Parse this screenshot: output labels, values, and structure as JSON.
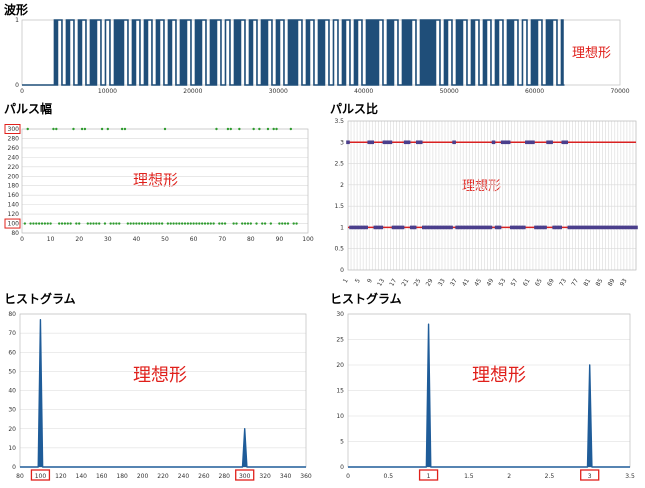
{
  "chart_data": [
    {
      "type": "line",
      "title": "波形",
      "annotation": "理想形",
      "xlim": [
        0,
        70000
      ],
      "ylim": [
        0,
        1
      ],
      "x_ticks": [
        0,
        10000,
        20000,
        30000,
        40000,
        50000,
        60000,
        70000
      ],
      "y_ticks": [
        0,
        1
      ],
      "pulse_widths_sequence": [
        100,
        300,
        100,
        300,
        100,
        300,
        100,
        100,
        300,
        300,
        100,
        100,
        100,
        300,
        100,
        300,
        100,
        300,
        100,
        300,
        100,
        300,
        100,
        100,
        300,
        100,
        100,
        300,
        100,
        100,
        300,
        300,
        100,
        100,
        300,
        100,
        300,
        100,
        100,
        300,
        100,
        300,
        100,
        100,
        100,
        300,
        100,
        300,
        100,
        100,
        300,
        300,
        100,
        300,
        100,
        300,
        100,
        100,
        100,
        100,
        300,
        100,
        100,
        300,
        100,
        100,
        100,
        300,
        100,
        100,
        100,
        100,
        100,
        300,
        100,
        300,
        100,
        100,
        300,
        100,
        300,
        100,
        300,
        100,
        300,
        100,
        100,
        300,
        300,
        100,
        100,
        300,
        100,
        100,
        300,
        100
      ],
      "waveform_span": [
        3800,
        63500
      ]
    },
    {
      "type": "scatter",
      "title": "パルス幅",
      "annotation": "理想形",
      "xlim": [
        0,
        100
      ],
      "ylim": [
        80,
        300
      ],
      "x_ticks": [
        0,
        10,
        20,
        30,
        40,
        50,
        60,
        70,
        80,
        90,
        100
      ],
      "y_ticks": [
        80,
        100,
        120,
        140,
        160,
        180,
        200,
        220,
        240,
        260,
        280,
        300
      ],
      "highlighted_y": [
        100,
        300
      ],
      "x_high": [
        2,
        11,
        12,
        18,
        21,
        22,
        28,
        30,
        35,
        36,
        50,
        68,
        72,
        73,
        76,
        81,
        83,
        86,
        88,
        89,
        94
      ],
      "high_value": 300,
      "low_value": 100,
      "count": 96
    },
    {
      "type": "line",
      "title": "パルス比",
      "annotation": "理想形",
      "ylim": [
        0,
        3.5
      ],
      "y_ticks": [
        0,
        0.5,
        1,
        1.5,
        2,
        2.5,
        3,
        3.5
      ],
      "x_ticks": [
        1,
        5,
        9,
        13,
        17,
        21,
        25,
        29,
        33,
        37,
        41,
        45,
        49,
        53,
        57,
        61,
        65,
        69,
        73,
        77,
        81,
        85,
        89,
        93
      ],
      "x_count": 96,
      "high_value": 3,
      "low_value": 1,
      "x_high": [
        1,
        8,
        9,
        13,
        14,
        15,
        20,
        21,
        24,
        25,
        36,
        49,
        52,
        53,
        54,
        60,
        61,
        62,
        67,
        68,
        72,
        73
      ]
    },
    {
      "type": "line",
      "title": "ヒストグラム",
      "annotation": "理想形",
      "xlim": [
        80,
        360
      ],
      "ylim": [
        0,
        80
      ],
      "x_ticks": [
        80,
        100,
        120,
        140,
        160,
        180,
        200,
        220,
        240,
        260,
        280,
        300,
        320,
        340,
        360
      ],
      "y_ticks": [
        0,
        10,
        20,
        30,
        40,
        50,
        60,
        70,
        80
      ],
      "highlighted_x": [
        100,
        300
      ],
      "peaks": [
        {
          "x": 100,
          "y": 77
        },
        {
          "x": 300,
          "y": 20
        }
      ]
    },
    {
      "type": "line",
      "title": "ヒストグラム",
      "annotation": "理想形",
      "xlim": [
        0,
        3.5
      ],
      "ylim": [
        0,
        30
      ],
      "x_ticks": [
        0,
        0.5,
        1,
        1.5,
        2,
        2.5,
        3,
        3.5
      ],
      "y_ticks": [
        0,
        5,
        10,
        15,
        20,
        25,
        30
      ],
      "highlighted_x": [
        1,
        3
      ],
      "peaks": [
        {
          "x": 1,
          "y": 28
        },
        {
          "x": 3,
          "y": 20
        }
      ]
    }
  ],
  "colors": {
    "waveform": "#1f4e79",
    "scatter": "#2e9b2e",
    "ratio_marker": "#4b3f8c",
    "ratio_line": "#d92121",
    "histogram": "#1f5c99",
    "annotation": "#e0201b",
    "highlight_box": "#e0201b"
  }
}
